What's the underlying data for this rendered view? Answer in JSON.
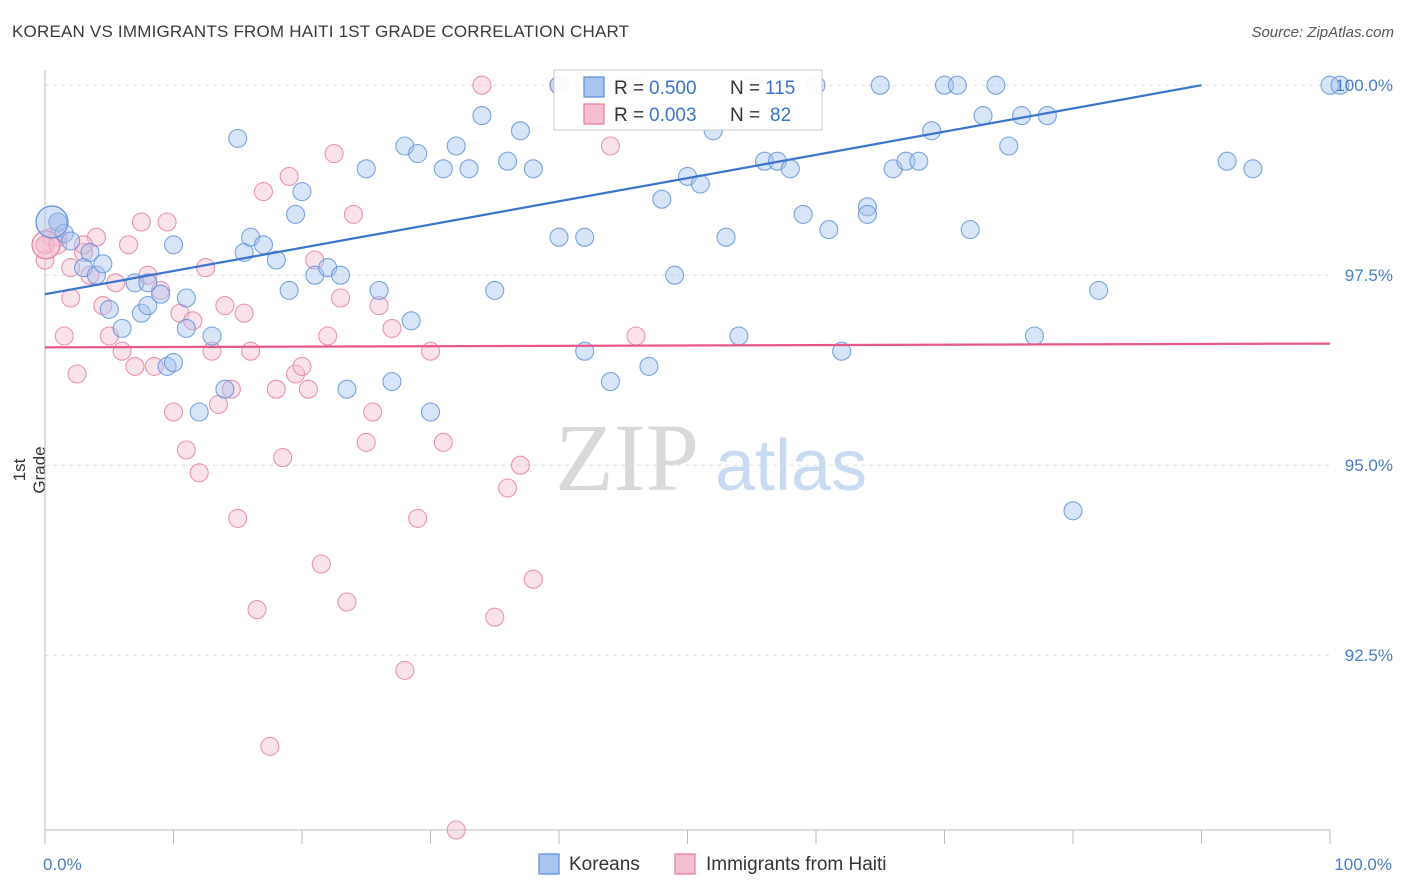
{
  "title": "KOREAN VS IMMIGRANTS FROM HAITI 1ST GRADE CORRELATION CHART",
  "source": "Source: ZipAtlas.com",
  "watermark": {
    "zip": "ZIP",
    "atlas": "atlas"
  },
  "colors": {
    "blue": "#5b8fd9",
    "blue_fill": "#a9c4ee",
    "blue_line": "#3a74cc",
    "pink": "#e67ba0",
    "pink_fill": "#f5bfd2",
    "pink_line": "#e8578a",
    "tick": "#4a7cc4",
    "grid": "#dddddd"
  },
  "legend_top": {
    "rows": [
      {
        "r_label": "R =",
        "r_value": "0.500",
        "n_label": "N =",
        "n_value": "115"
      },
      {
        "r_label": "R =",
        "r_value": "0.003",
        "n_label": "N =",
        "n_value": "82"
      }
    ]
  },
  "legend_bottom": [
    "Koreans",
    "Immigrants from Haiti"
  ],
  "chart_data": {
    "type": "scatter",
    "xlabel": "",
    "ylabel": "1st Grade",
    "x_tick_labels": [
      "0.0%",
      "100.0%"
    ],
    "y_tick_labels": [
      "100.0%",
      "97.5%",
      "95.0%",
      "92.5%"
    ],
    "y_ticks": [
      100.0,
      97.5,
      95.0,
      92.5
    ],
    "xlim": [
      0,
      100
    ],
    "ylim": [
      90.2,
      100.2
    ],
    "grid": true,
    "series": [
      {
        "name": "Koreans",
        "trend": [
          [
            0,
            97.25
          ],
          [
            90,
            100.0
          ]
        ],
        "points": [
          [
            1,
            98.2
          ],
          [
            1,
            98.2
          ],
          [
            1.5,
            98.05
          ],
          [
            2,
            97.95
          ],
          [
            3,
            97.6
          ],
          [
            3.5,
            97.8
          ],
          [
            4,
            97.5
          ],
          [
            4.5,
            97.65
          ],
          [
            5,
            97.05
          ],
          [
            6,
            96.8
          ],
          [
            7,
            97.4
          ],
          [
            7.5,
            97.0
          ],
          [
            8,
            97.4
          ],
          [
            8,
            97.1
          ],
          [
            9,
            97.25
          ],
          [
            9.5,
            96.3
          ],
          [
            10,
            97.9
          ],
          [
            10,
            96.35
          ],
          [
            11,
            97.2
          ],
          [
            11,
            96.8
          ],
          [
            12,
            95.7
          ],
          [
            13,
            96.7
          ],
          [
            14,
            96.0
          ],
          [
            15,
            99.3
          ],
          [
            15.5,
            97.8
          ],
          [
            16,
            98.0
          ],
          [
            17,
            97.9
          ],
          [
            18,
            97.7
          ],
          [
            19,
            97.3
          ],
          [
            19.5,
            98.3
          ],
          [
            20,
            98.6
          ],
          [
            21,
            97.5
          ],
          [
            22,
            97.6
          ],
          [
            23,
            97.5
          ],
          [
            23.5,
            96.0
          ],
          [
            25,
            98.9
          ],
          [
            26,
            97.3
          ],
          [
            27,
            96.1
          ],
          [
            28,
            99.2
          ],
          [
            28.5,
            96.9
          ],
          [
            29,
            99.1
          ],
          [
            30,
            95.7
          ],
          [
            31,
            98.9
          ],
          [
            32,
            99.2
          ],
          [
            33,
            98.9
          ],
          [
            34,
            99.6
          ],
          [
            35,
            97.3
          ],
          [
            36,
            99.0
          ],
          [
            37,
            99.4
          ],
          [
            38,
            98.9
          ],
          [
            40,
            98.0
          ],
          [
            40,
            100.0
          ],
          [
            42,
            98.0
          ],
          [
            42,
            96.5
          ],
          [
            44,
            96.1
          ],
          [
            45,
            99.6
          ],
          [
            45,
            100.0
          ],
          [
            46,
            100.0
          ],
          [
            46,
            100.0
          ],
          [
            47,
            96.3
          ],
          [
            48,
            98.5
          ],
          [
            49,
            97.5
          ],
          [
            50,
            98.8
          ],
          [
            51,
            98.7
          ],
          [
            52,
            99.4
          ],
          [
            53,
            98.0
          ],
          [
            54,
            96.7
          ],
          [
            55,
            100.0
          ],
          [
            56,
            99.0
          ],
          [
            57,
            99.0
          ],
          [
            58,
            98.9
          ],
          [
            59,
            98.3
          ],
          [
            60,
            100.0
          ],
          [
            61,
            98.1
          ],
          [
            62,
            96.5
          ],
          [
            64,
            98.4
          ],
          [
            64,
            98.3
          ],
          [
            65,
            100.0
          ],
          [
            66,
            98.9
          ],
          [
            67,
            99.0
          ],
          [
            68,
            99.0
          ],
          [
            69,
            99.4
          ],
          [
            70,
            100.0
          ],
          [
            71,
            100.0
          ],
          [
            72,
            98.1
          ],
          [
            73,
            99.6
          ],
          [
            74,
            100.0
          ],
          [
            75,
            99.2
          ],
          [
            76,
            99.6
          ],
          [
            77,
            96.7
          ],
          [
            78,
            99.6
          ],
          [
            80,
            94.4
          ],
          [
            82,
            97.3
          ],
          [
            92,
            99.0
          ],
          [
            94,
            98.9
          ],
          [
            100,
            100.0
          ],
          [
            105,
            100.0
          ]
        ]
      },
      {
        "name": "Immigrants from Haiti",
        "trend": [
          [
            0,
            96.55
          ],
          [
            100,
            96.6
          ]
        ],
        "points": [
          [
            0,
            97.9
          ],
          [
            0.5,
            98.0
          ],
          [
            1,
            98.0
          ],
          [
            1.5,
            96.7
          ],
          [
            2,
            97.2
          ],
          [
            2.5,
            96.2
          ],
          [
            3,
            97.8
          ],
          [
            3.5,
            97.5
          ],
          [
            4,
            98.0
          ],
          [
            4.5,
            97.1
          ],
          [
            5,
            96.7
          ],
          [
            5.5,
            97.4
          ],
          [
            6,
            96.5
          ],
          [
            6.5,
            97.9
          ],
          [
            7,
            96.3
          ],
          [
            7.5,
            98.2
          ],
          [
            8,
            97.5
          ],
          [
            8.5,
            96.3
          ],
          [
            9,
            97.3
          ],
          [
            9.5,
            98.2
          ],
          [
            10,
            95.7
          ],
          [
            10.5,
            97.0
          ],
          [
            11,
            95.2
          ],
          [
            11.5,
            96.9
          ],
          [
            12,
            94.9
          ],
          [
            12.5,
            97.6
          ],
          [
            13,
            96.5
          ],
          [
            13.5,
            95.8
          ],
          [
            14,
            97.1
          ],
          [
            14.5,
            96.0
          ],
          [
            15,
            94.3
          ],
          [
            15.5,
            97.0
          ],
          [
            16,
            96.5
          ],
          [
            16.5,
            93.1
          ],
          [
            17,
            98.6
          ],
          [
            17.5,
            91.3
          ],
          [
            18,
            96.0
          ],
          [
            18.5,
            95.1
          ],
          [
            19,
            98.8
          ],
          [
            19.5,
            96.2
          ],
          [
            20,
            96.3
          ],
          [
            20.5,
            96.0
          ],
          [
            21,
            97.7
          ],
          [
            21.5,
            93.7
          ],
          [
            22,
            96.7
          ],
          [
            22.5,
            99.1
          ],
          [
            23,
            97.2
          ],
          [
            23.5,
            93.2
          ],
          [
            24,
            98.3
          ],
          [
            25,
            95.3
          ],
          [
            25.5,
            95.7
          ],
          [
            26,
            97.1
          ],
          [
            27,
            96.8
          ],
          [
            28,
            92.3
          ],
          [
            29,
            94.3
          ],
          [
            30,
            96.5
          ],
          [
            31,
            95.3
          ],
          [
            32,
            90.2
          ],
          [
            34,
            100.0
          ],
          [
            35,
            93.0
          ],
          [
            36,
            94.7
          ],
          [
            37,
            95.0
          ],
          [
            38,
            93.5
          ],
          [
            40,
            100.0
          ],
          [
            42,
            100.0
          ],
          [
            44,
            99.2
          ],
          [
            46,
            96.7
          ],
          [
            0,
            97.9
          ],
          [
            0,
            97.7
          ],
          [
            1,
            97.9
          ],
          [
            2,
            97.6
          ],
          [
            3,
            97.9
          ]
        ]
      }
    ]
  }
}
